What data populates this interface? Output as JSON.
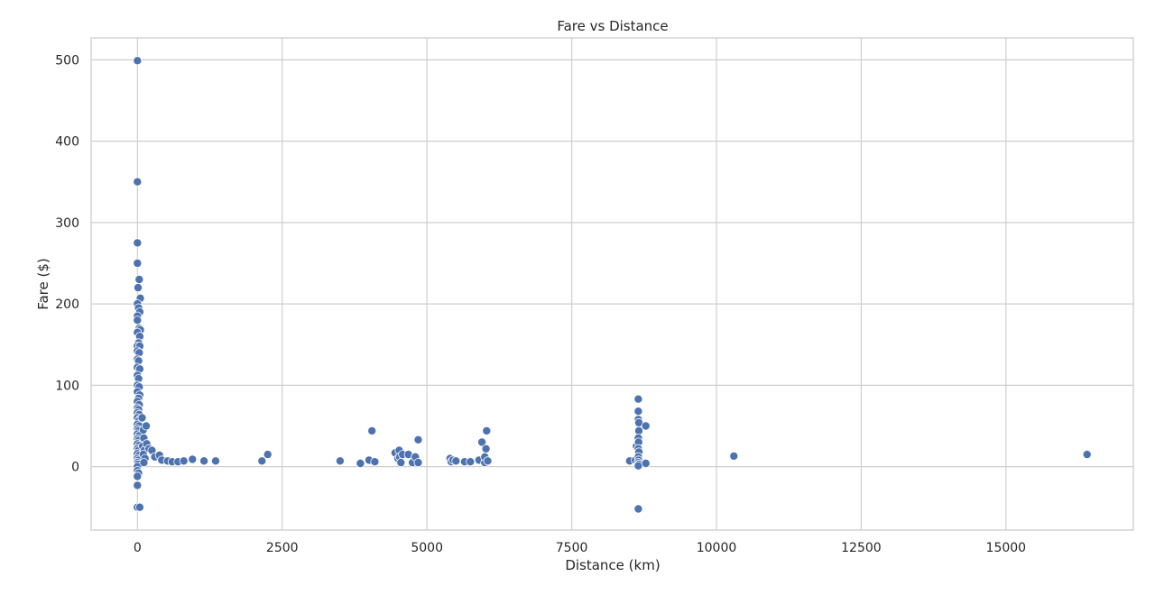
{
  "chart_data": {
    "type": "scatter",
    "title": "Fare vs Distance",
    "xlabel": "Distance (km)",
    "ylabel": "Fare ($)",
    "xlim": [
      -800,
      17200
    ],
    "ylim": [
      -78,
      527
    ],
    "xticks": [
      0,
      2500,
      5000,
      7500,
      10000,
      12500,
      15000
    ],
    "xtick_labels": [
      "0",
      "2500",
      "5000",
      "7500",
      "10000",
      "12500",
      "15000"
    ],
    "yticks": [
      0,
      100,
      200,
      300,
      400,
      500
    ],
    "ytick_labels": [
      "0",
      "100",
      "200",
      "300",
      "400",
      "500"
    ],
    "grid": true,
    "color": "#4c72b0",
    "points": [
      [
        0,
        499
      ],
      [
        0,
        350
      ],
      [
        0,
        275
      ],
      [
        0,
        250
      ],
      [
        30,
        230
      ],
      [
        10,
        220
      ],
      [
        50,
        207
      ],
      [
        0,
        200
      ],
      [
        20,
        195
      ],
      [
        40,
        190
      ],
      [
        0,
        185
      ],
      [
        0,
        180
      ],
      [
        30,
        170
      ],
      [
        50,
        168
      ],
      [
        0,
        165
      ],
      [
        40,
        160
      ],
      [
        20,
        152
      ],
      [
        0,
        148
      ],
      [
        40,
        148
      ],
      [
        0,
        142
      ],
      [
        30,
        140
      ],
      [
        0,
        132
      ],
      [
        20,
        130
      ],
      [
        0,
        122
      ],
      [
        40,
        120
      ],
      [
        0,
        112
      ],
      [
        20,
        108
      ],
      [
        0,
        100
      ],
      [
        30,
        98
      ],
      [
        0,
        92
      ],
      [
        40,
        88
      ],
      [
        20,
        84
      ],
      [
        0,
        80
      ],
      [
        30,
        76
      ],
      [
        0,
        72
      ],
      [
        20,
        70
      ],
      [
        0,
        66
      ],
      [
        30,
        64
      ],
      [
        0,
        60
      ],
      [
        40,
        58
      ],
      [
        20,
        56
      ],
      [
        0,
        52
      ],
      [
        30,
        50
      ],
      [
        0,
        46
      ],
      [
        20,
        44
      ],
      [
        0,
        40
      ],
      [
        30,
        38
      ],
      [
        0,
        34
      ],
      [
        20,
        32
      ],
      [
        0,
        28
      ],
      [
        30,
        26
      ],
      [
        0,
        22
      ],
      [
        20,
        20
      ],
      [
        0,
        16
      ],
      [
        30,
        14
      ],
      [
        0,
        10
      ],
      [
        20,
        8
      ],
      [
        0,
        5
      ],
      [
        10,
        3
      ],
      [
        0,
        0
      ],
      [
        0,
        -5
      ],
      [
        20,
        -8
      ],
      [
        0,
        -12
      ],
      [
        0,
        -23
      ],
      [
        0,
        -50
      ],
      [
        40,
        -50
      ],
      [
        80,
        60
      ],
      [
        100,
        45
      ],
      [
        150,
        50
      ],
      [
        110,
        35
      ],
      [
        90,
        25
      ],
      [
        120,
        20
      ],
      [
        100,
        15
      ],
      [
        130,
        10
      ],
      [
        110,
        5
      ],
      [
        160,
        28
      ],
      [
        200,
        22
      ],
      [
        250,
        20
      ],
      [
        300,
        12
      ],
      [
        380,
        14
      ],
      [
        420,
        8
      ],
      [
        520,
        7
      ],
      [
        600,
        6
      ],
      [
        700,
        6
      ],
      [
        800,
        7
      ],
      [
        950,
        9
      ],
      [
        1150,
        7
      ],
      [
        1350,
        7
      ],
      [
        2150,
        7
      ],
      [
        2250,
        15
      ],
      [
        3500,
        7
      ],
      [
        3850,
        4
      ],
      [
        4000,
        8
      ],
      [
        4050,
        44
      ],
      [
        4100,
        6
      ],
      [
        4450,
        17
      ],
      [
        4500,
        10
      ],
      [
        4520,
        20
      ],
      [
        4530,
        12
      ],
      [
        4550,
        5
      ],
      [
        4580,
        15
      ],
      [
        4680,
        15
      ],
      [
        4750,
        5
      ],
      [
        4800,
        12
      ],
      [
        4850,
        33
      ],
      [
        4850,
        5
      ],
      [
        5400,
        10
      ],
      [
        5420,
        6
      ],
      [
        5450,
        8
      ],
      [
        5500,
        7
      ],
      [
        5650,
        6
      ],
      [
        5750,
        6
      ],
      [
        5900,
        8
      ],
      [
        5950,
        30
      ],
      [
        6000,
        5
      ],
      [
        6000,
        12
      ],
      [
        6020,
        22
      ],
      [
        6030,
        44
      ],
      [
        6050,
        7
      ],
      [
        8500,
        7
      ],
      [
        8600,
        8
      ],
      [
        8620,
        25
      ],
      [
        8650,
        83
      ],
      [
        8650,
        68
      ],
      [
        8650,
        58
      ],
      [
        8660,
        54
      ],
      [
        8660,
        44
      ],
      [
        8650,
        35
      ],
      [
        8655,
        30
      ],
      [
        8650,
        22
      ],
      [
        8660,
        18
      ],
      [
        8650,
        12
      ],
      [
        8655,
        8
      ],
      [
        8650,
        5
      ],
      [
        8660,
        3
      ],
      [
        8650,
        1
      ],
      [
        8650,
        -52
      ],
      [
        8780,
        50
      ],
      [
        8780,
        4
      ],
      [
        10300,
        13
      ],
      [
        16400,
        15
      ]
    ]
  }
}
